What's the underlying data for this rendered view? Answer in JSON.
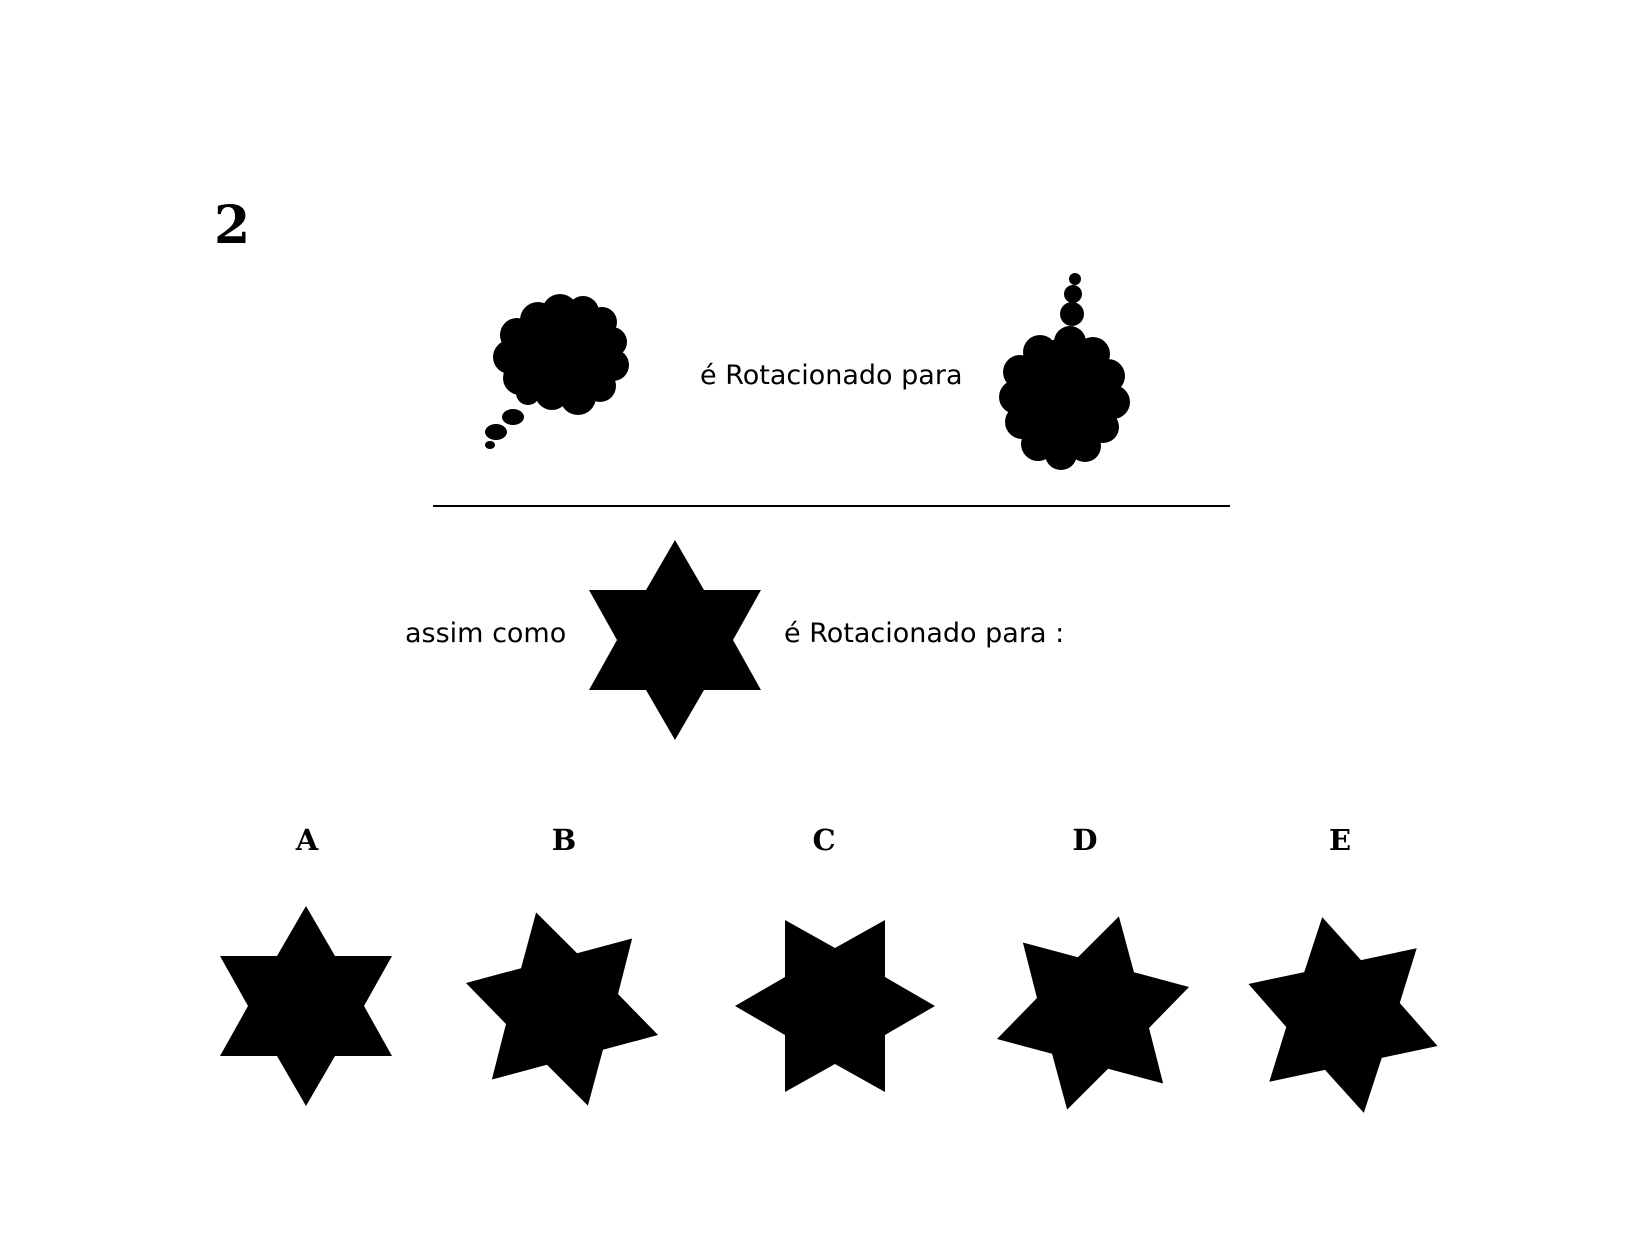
{
  "question": {
    "number": "2",
    "example_text": "é Rotacionado para",
    "prompt_prefix": "assim como",
    "prompt_suffix": "é Rotacionado para :"
  },
  "shapes": {
    "example_before": "thought-bubble-icon",
    "example_after": "thought-bubble-rotated-icon",
    "subject": "six-point-star-icon"
  },
  "options": [
    {
      "label": "A",
      "icon": "star-option-a-icon"
    },
    {
      "label": "B",
      "icon": "star-option-b-icon"
    },
    {
      "label": "C",
      "icon": "star-option-c-icon"
    },
    {
      "label": "D",
      "icon": "star-option-d-icon"
    },
    {
      "label": "E",
      "icon": "star-option-e-icon"
    }
  ],
  "colors": {
    "ink": "#000000",
    "background": "#ffffff"
  }
}
